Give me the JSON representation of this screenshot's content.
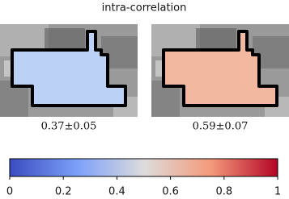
{
  "title": "intra-correlation",
  "panels": [
    {
      "caption": "0.37±0.05",
      "fill": "#bcd1f6"
    },
    {
      "caption": "0.59±0.07",
      "fill": "#f3b9a0"
    }
  ],
  "colorbar": {
    "lim": [
      0,
      1
    ],
    "ticks": [
      0,
      0.2,
      0.4,
      0.6,
      0.8,
      1
    ]
  }
}
